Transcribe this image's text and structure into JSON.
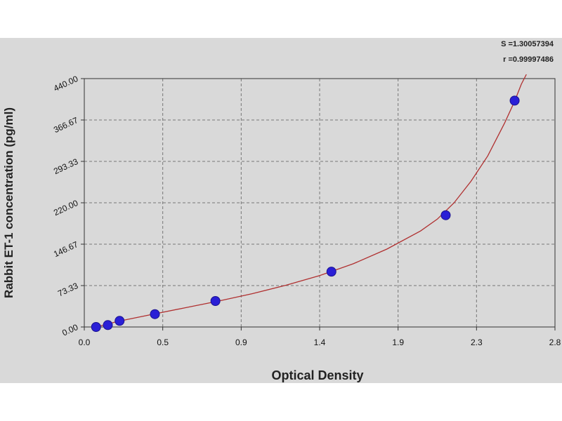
{
  "chart_data": {
    "type": "scatter",
    "title": "",
    "xlabel": "Optical Density",
    "ylabel": "Rabbit ET-1 concentration (pg/ml)",
    "xlim": [
      0,
      2.8
    ],
    "ylim": [
      0,
      440
    ],
    "x_ticks": [
      "0.0",
      "0.5",
      "0.9",
      "1.4",
      "1.9",
      "2.3",
      "2.8"
    ],
    "y_ticks": [
      "0.00",
      "73.33",
      "146.67",
      "220.00",
      "293.33",
      "366.67",
      "440.00"
    ],
    "grid": true,
    "series": [
      {
        "type": "scatter",
        "color": "#2a1fd6",
        "x": [
          0.07,
          0.14,
          0.21,
          0.42,
          0.78,
          1.47,
          2.15,
          2.56
        ],
        "y": [
          0,
          3.4,
          10.8,
          22.7,
          46,
          98,
          198,
          401
        ]
      },
      {
        "type": "line",
        "color": "#b03030",
        "x": [
          0.07,
          0.2,
          0.4,
          0.6,
          0.8,
          1.0,
          1.2,
          1.4,
          1.6,
          1.8,
          2.0,
          2.1,
          2.2,
          2.3,
          2.4,
          2.5,
          2.56,
          2.6,
          2.63
        ],
        "y": [
          0,
          10,
          22,
          34,
          46,
          59,
          74,
          91,
          112,
          138,
          170,
          191,
          220,
          258,
          303,
          361,
          400,
          430,
          448
        ]
      }
    ],
    "annotations": [
      "S =1.30057394",
      "r =0.99997486"
    ]
  }
}
